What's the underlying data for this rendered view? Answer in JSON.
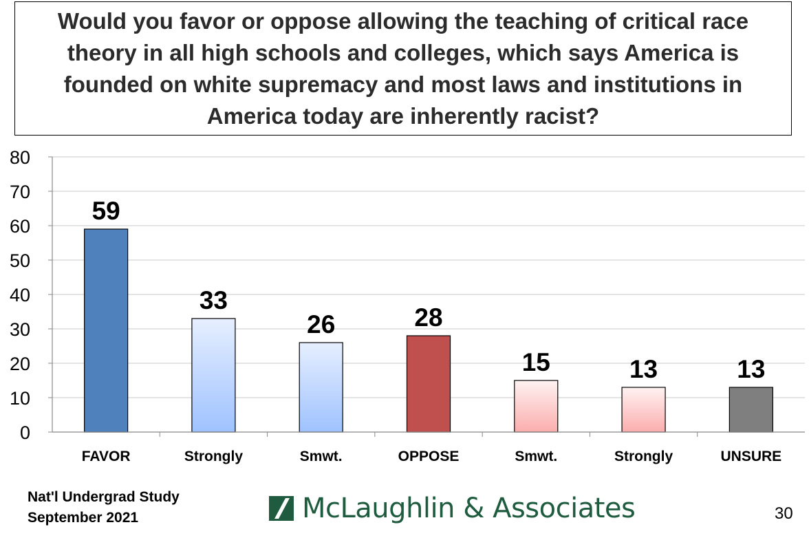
{
  "title": "Would you favor or oppose allowing the teaching of critical race theory in all high schools and colleges, which says America is founded on white supremacy and most laws and institutions in America today are inherently racist?",
  "chart_data": {
    "type": "bar",
    "title": "Would you favor or oppose allowing the teaching of critical race theory in all high schools and colleges, which says America is founded on white supremacy and most laws and institutions in America today are inherently racist?",
    "categories": [
      "FAVOR",
      "Strongly",
      "Smwt.",
      "OPPOSE",
      "Smwt.",
      "Strongly",
      "UNSURE"
    ],
    "values": [
      59,
      33,
      26,
      28,
      15,
      13,
      13
    ],
    "data_labels": [
      "59",
      "33",
      "26",
      "28",
      "15",
      "13",
      "13"
    ],
    "bar_styles": [
      "favor",
      "favor-sub",
      "favor-sub",
      "oppose",
      "oppose-sub",
      "oppose-sub",
      "unsure"
    ],
    "ylim": [
      0,
      80
    ],
    "yticks": [
      0,
      10,
      20,
      30,
      40,
      50,
      60,
      70,
      80
    ],
    "xlabel": "",
    "ylabel": "",
    "grid": true,
    "legend": "none"
  },
  "colors": {
    "favor": "#4f81bd",
    "favor_sub_top": "#e6efff",
    "favor_sub_bottom": "#9fc2ff",
    "oppose": "#c0504d",
    "oppose_sub_top": "#fff2f2",
    "oppose_sub_bottom": "#fbadad",
    "unsure": "#7f7f7f",
    "gridline": "#c8c8c8",
    "brand": "#1f5c3f"
  },
  "footer": {
    "study_line1": "Nat'l Undergrad Study",
    "study_line2": "September 2021",
    "brand_name": "McLaughlin & Associates",
    "brand_icon": "slash-square-logo",
    "page_number": "30"
  }
}
